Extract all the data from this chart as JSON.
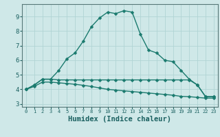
{
  "xlabel": "Humidex (Indice chaleur)",
  "background_color": "#cfe8e8",
  "grid_color": "#b0d4d4",
  "line_color": "#1a7a6e",
  "marker": "D",
  "markersize": 2.5,
  "linewidth": 1.0,
  "xlim": [
    -0.5,
    23.5
  ],
  "ylim": [
    2.8,
    9.85
  ],
  "xticks": [
    0,
    1,
    2,
    3,
    4,
    5,
    6,
    7,
    8,
    9,
    10,
    11,
    12,
    13,
    14,
    15,
    16,
    17,
    18,
    19,
    20,
    21,
    22,
    23
  ],
  "yticks": [
    3,
    4,
    5,
    6,
    7,
    8,
    9
  ],
  "line1_x": [
    0,
    1,
    2,
    3,
    4,
    5,
    6,
    7,
    8,
    9,
    10,
    11,
    12,
    13,
    14,
    15,
    16,
    17,
    18,
    19,
    20,
    21,
    22,
    23
  ],
  "line1_y": [
    4.0,
    4.3,
    4.7,
    4.7,
    5.3,
    6.1,
    6.5,
    7.3,
    8.3,
    8.9,
    9.3,
    9.2,
    9.4,
    9.3,
    7.8,
    6.7,
    6.5,
    6.0,
    5.9,
    5.3,
    4.7,
    4.3,
    3.5,
    3.5
  ],
  "line2_x": [
    0,
    1,
    2,
    3,
    4,
    5,
    6,
    7,
    8,
    9,
    10,
    11,
    12,
    13,
    14,
    15,
    16,
    17,
    18,
    19,
    20,
    21,
    22,
    23
  ],
  "line2_y": [
    4.0,
    4.3,
    4.7,
    4.7,
    4.65,
    4.65,
    4.65,
    4.65,
    4.65,
    4.65,
    4.65,
    4.65,
    4.65,
    4.65,
    4.65,
    4.65,
    4.65,
    4.65,
    4.65,
    4.65,
    4.65,
    4.3,
    3.5,
    3.5
  ],
  "line3_x": [
    0,
    1,
    2,
    3,
    4,
    5,
    6,
    7,
    8,
    9,
    10,
    11,
    12,
    13,
    14,
    15,
    16,
    17,
    18,
    19,
    20,
    21,
    22,
    23
  ],
  "line3_y": [
    4.0,
    4.2,
    4.5,
    4.5,
    4.45,
    4.4,
    4.35,
    4.28,
    4.2,
    4.1,
    4.0,
    3.95,
    3.9,
    3.85,
    3.8,
    3.75,
    3.7,
    3.65,
    3.6,
    3.52,
    3.5,
    3.45,
    3.4,
    3.4
  ],
  "tick_color": "#1a6060",
  "label_fontsize": 6.5,
  "xlabel_fontsize": 7.5
}
